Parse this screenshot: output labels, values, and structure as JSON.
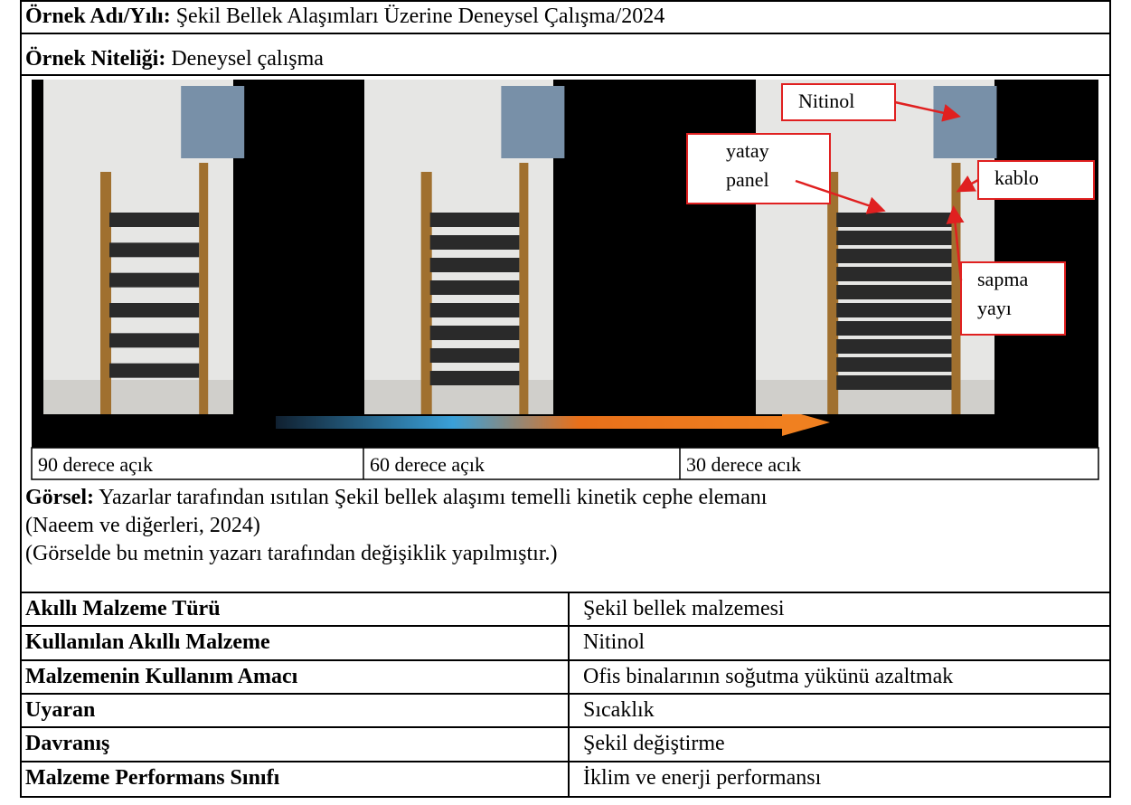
{
  "header": {
    "name_label": "Örnek Adı/Yılı:",
    "name": "Şekil Bellek Alaşımları Üzerine Deneysel Çalışma/2024",
    "nature_label": "Örnek Niteliği:",
    "nature": "Deneysel çalışma"
  },
  "figure": {
    "annotations": [
      {
        "lines": [
          "Nitinol"
        ]
      },
      {
        "lines": [
          "yatay",
          "panel"
        ]
      },
      {
        "lines": [
          "kablo"
        ]
      },
      {
        "lines": [
          "sapma",
          "yayı"
        ]
      }
    ],
    "panels": [
      "90 derece açık",
      "60 derece açık",
      "30 derece acık"
    ]
  },
  "caption": {
    "label": "Görsel:",
    "lines": [
      " Yazarlar tarafından ısıtılan Şekil bellek alaşımı temelli kinetik cephe elemanı",
      "(Naeem ve diğerleri, 2024)",
      "(Görselde bu metnin yazarı tarafından değişiklik yapılmıştır.)"
    ]
  },
  "table": {
    "rows": [
      [
        "Akıllı Malzeme Türü",
        "Şekil bellek malzemesi"
      ],
      [
        "Kullanılan Akıllı Malzeme",
        "Nitinol"
      ],
      [
        "Malzemenin Kullanım Amacı",
        "Ofis binalarının soğutma yükünü azaltmak"
      ],
      [
        "Uyaran",
        "Sıcaklık"
      ],
      [
        "Davranış",
        "Şekil değiştirme"
      ],
      [
        "Malzeme Performans Sınıfı",
        "İklim ve enerji performansı"
      ]
    ]
  }
}
